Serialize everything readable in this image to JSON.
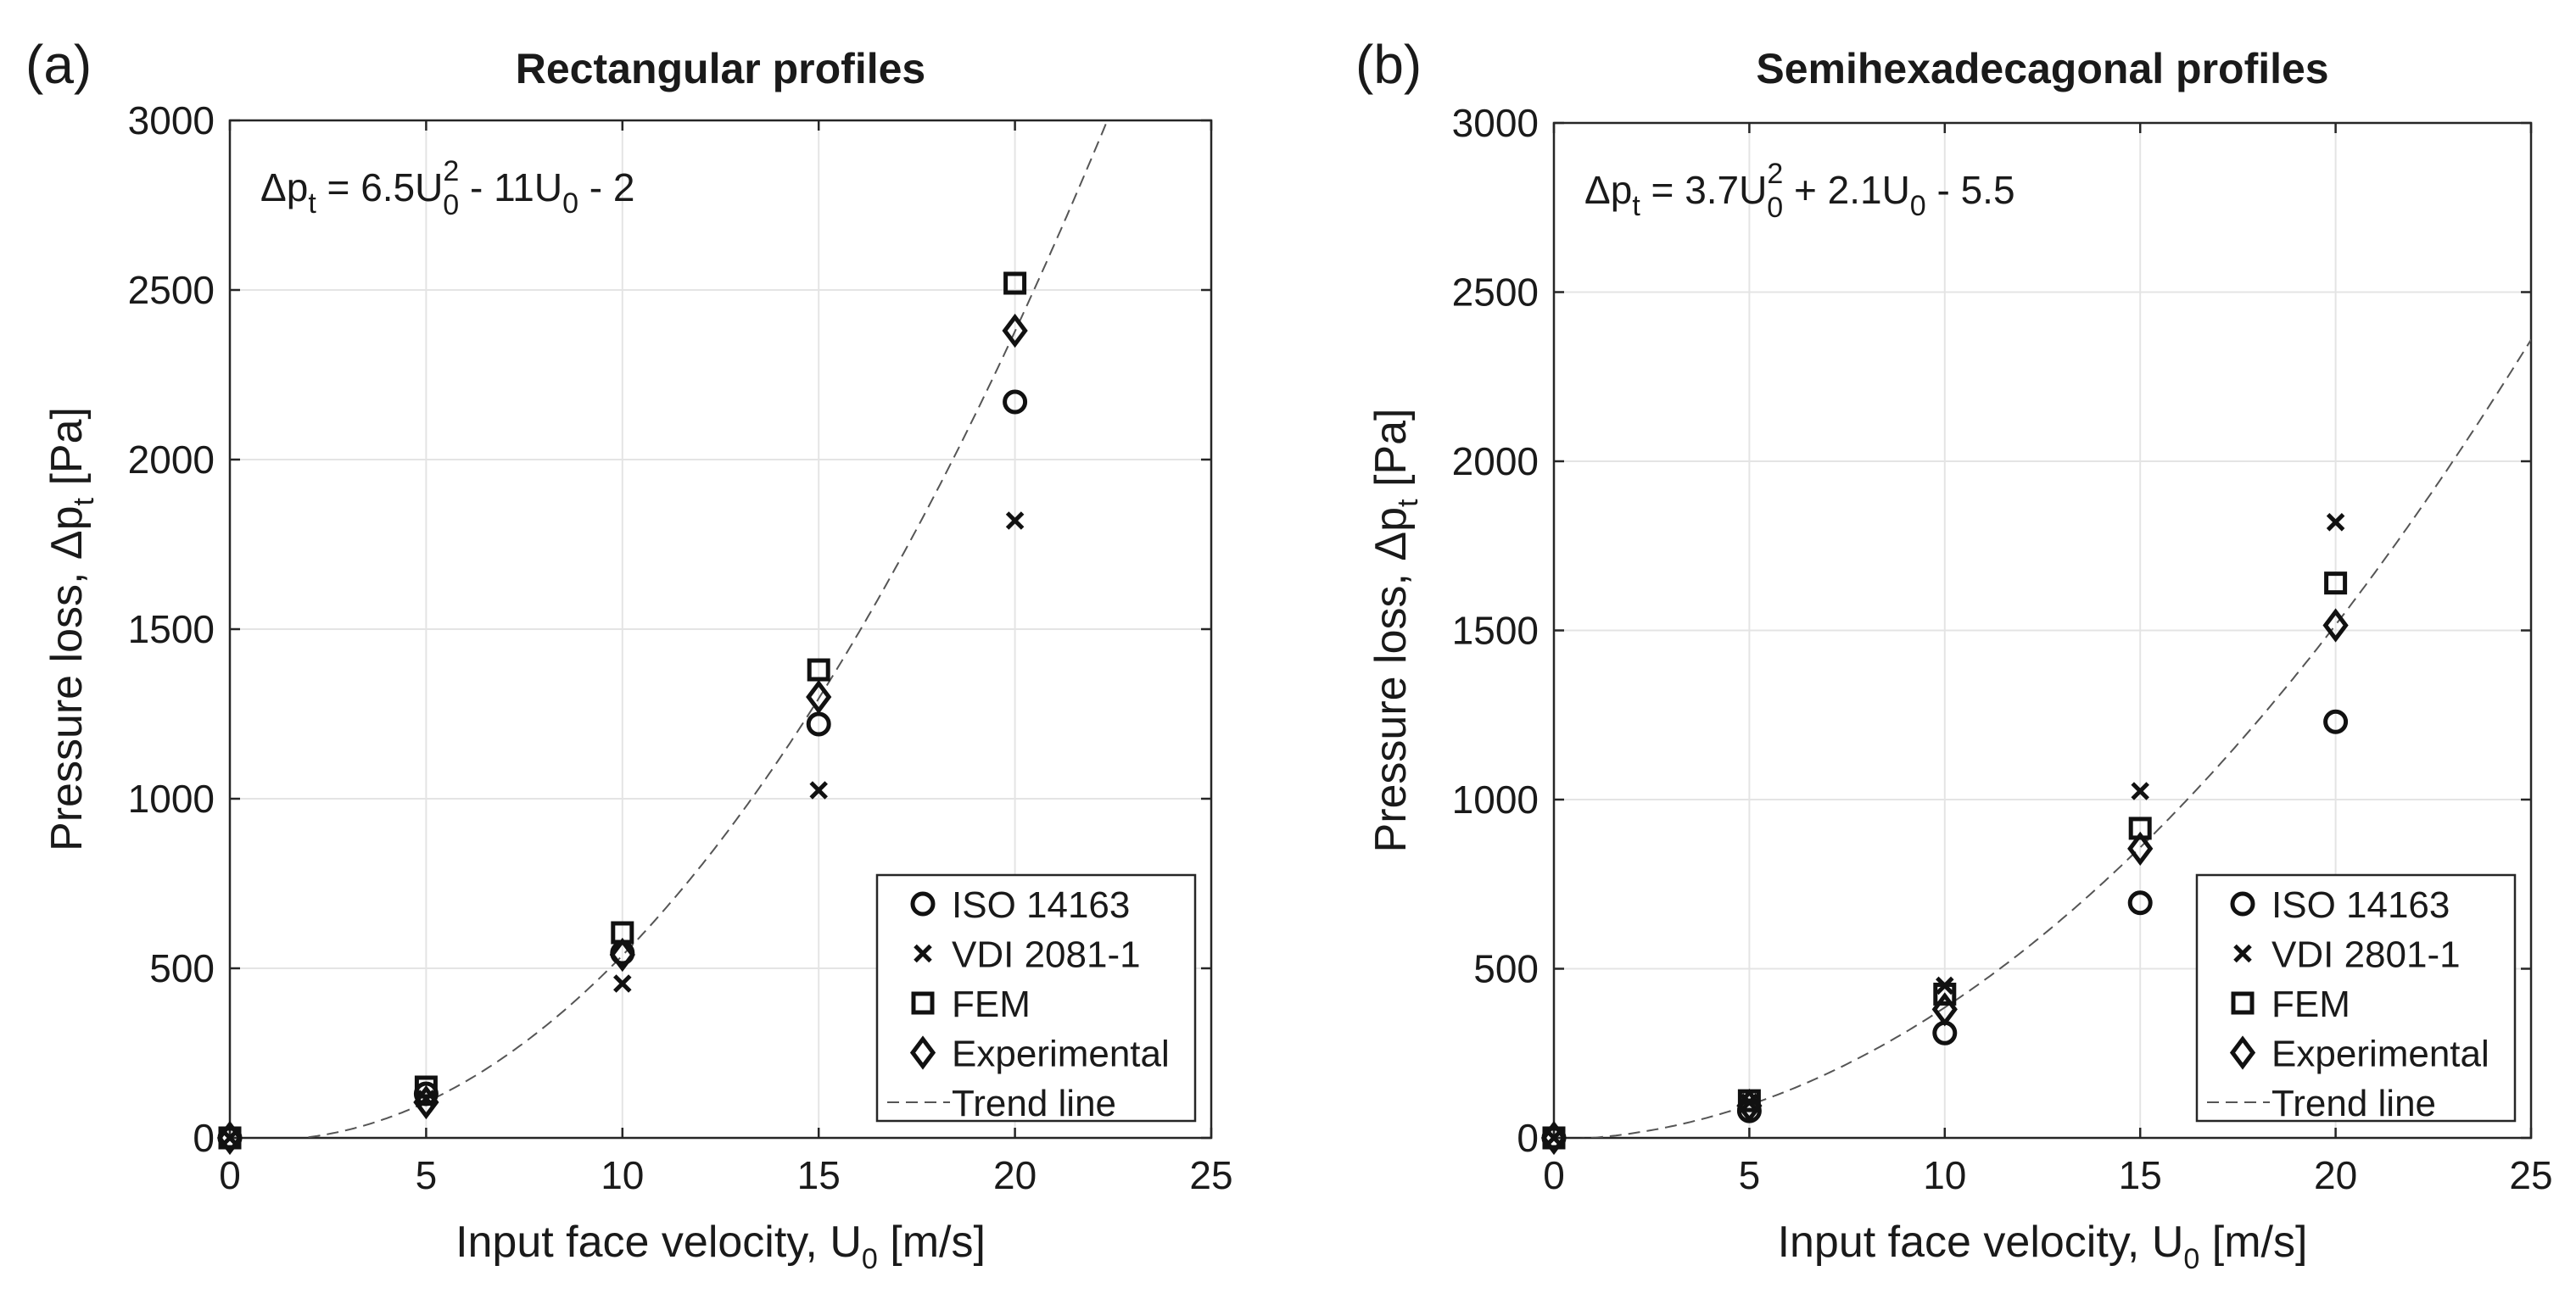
{
  "chart_data": [
    {
      "type": "scatter",
      "panel_label": "(a)",
      "title": "Rectangular profiles",
      "ylabel": "Pressure loss, Δp",
      "ylabel_sub": "t",
      "ylabel_unit": " [Pa]",
      "xlabel": "Input face velocity, U",
      "xlabel_sub": "0",
      "xlabel_unit": " [m/s]",
      "xlim": [
        0,
        25
      ],
      "ylim": [
        0,
        3000
      ],
      "xticks": [
        0,
        5,
        10,
        15,
        20,
        25
      ],
      "yticks": [
        0,
        500,
        1000,
        1500,
        2000,
        2500,
        3000
      ],
      "grid": true,
      "equation": {
        "lhs": "Δp",
        "lhs_sub": "t",
        "p1": " = 6.5U",
        "p1_sup": "2",
        "p1_sub": "0",
        "p2": " - 11U",
        "p2_sub": "0",
        "p3": " - 2"
      },
      "trend": {
        "a": 6.5,
        "b": -11,
        "c": -2,
        "x_start": 2
      },
      "series": [
        {
          "name": "ISO 14163",
          "marker": "circle",
          "x": [
            0,
            5,
            10,
            15,
            20
          ],
          "y": [
            0,
            130,
            545,
            1220,
            2170
          ]
        },
        {
          "name": "VDI 2081-1",
          "marker": "x",
          "x": [
            0,
            5,
            10,
            15,
            20
          ],
          "y": [
            0,
            115,
            455,
            1025,
            1820
          ]
        },
        {
          "name": "FEM",
          "marker": "square",
          "x": [
            0,
            5,
            10,
            15,
            20
          ],
          "y": [
            0,
            150,
            605,
            1380,
            2520
          ]
        },
        {
          "name": "Experimental",
          "marker": "diamond",
          "x": [
            0,
            5,
            10,
            15,
            20
          ],
          "y": [
            0,
            105,
            540,
            1300,
            2380
          ]
        }
      ],
      "trend_label": "Trend line",
      "legend_position": "bottom-right"
    },
    {
      "type": "scatter",
      "panel_label": "(b)",
      "title": "Semihexadecagonal profiles",
      "ylabel": "Pressure loss, Δp",
      "ylabel_sub": "t",
      "ylabel_unit": " [Pa]",
      "xlabel": "Input face velocity, U",
      "xlabel_sub": "0",
      "xlabel_unit": " [m/s]",
      "xlim": [
        0,
        25
      ],
      "ylim": [
        0,
        3000
      ],
      "xticks": [
        0,
        5,
        10,
        15,
        20,
        25
      ],
      "yticks": [
        0,
        500,
        1000,
        1500,
        2000,
        2500,
        3000
      ],
      "grid": true,
      "equation": {
        "lhs": "Δp",
        "lhs_sub": "t",
        "p1": " = 3.7U",
        "p1_sup": "2",
        "p1_sub": "0",
        "p2": " + 2.1U",
        "p2_sub": "0",
        "p3": " - 5.5"
      },
      "trend": {
        "a": 3.7,
        "b": 2.1,
        "c": -5.5,
        "x_start": 0
      },
      "series": [
        {
          "name": "ISO 14163",
          "marker": "circle",
          "x": [
            0,
            5,
            10,
            15,
            20
          ],
          "y": [
            0,
            80,
            310,
            695,
            1230
          ]
        },
        {
          "name": "VDI 2801-1",
          "marker": "x",
          "x": [
            0,
            5,
            10,
            15,
            20
          ],
          "y": [
            0,
            105,
            450,
            1025,
            1820
          ]
        },
        {
          "name": "FEM",
          "marker": "square",
          "x": [
            0,
            5,
            10,
            15,
            20
          ],
          "y": [
            0,
            110,
            425,
            915,
            1640
          ]
        },
        {
          "name": "Experimental",
          "marker": "diamond",
          "x": [
            0,
            5,
            10,
            15,
            20
          ],
          "y": [
            0,
            95,
            380,
            855,
            1515
          ]
        }
      ],
      "trend_label": "Trend line",
      "legend_position": "bottom-right"
    }
  ]
}
